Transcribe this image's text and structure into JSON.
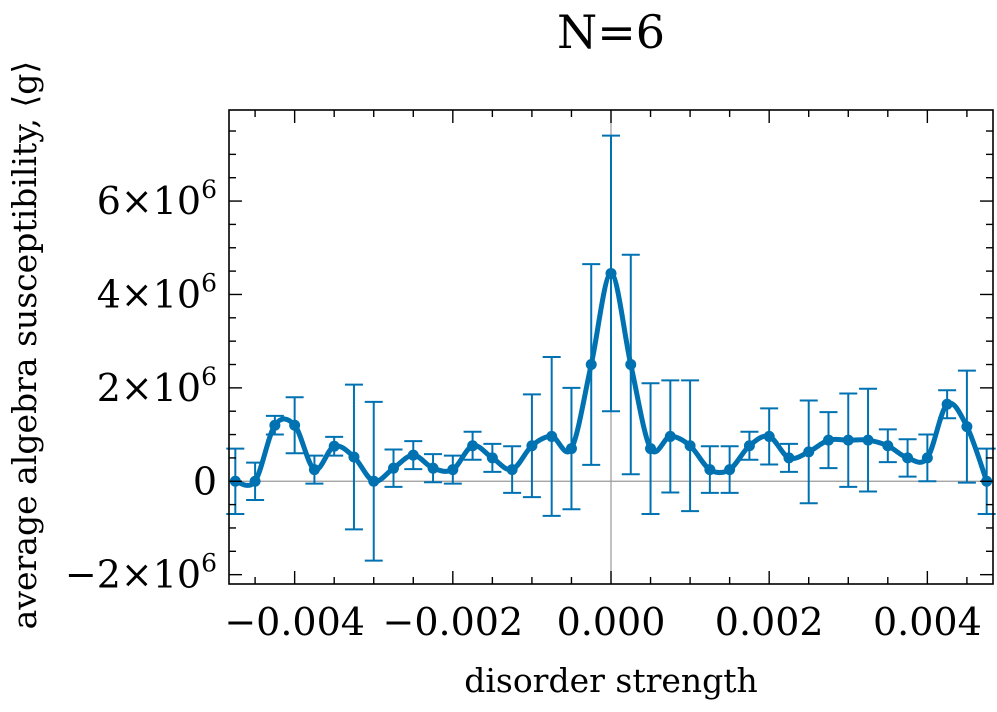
{
  "chart_data": {
    "type": "line",
    "title": "N=6",
    "xlabel": "disorder strength",
    "ylabel": "average algebra susceptibility, ⟨g⟩",
    "xlim": [
      -0.00483,
      0.00483
    ],
    "ylim": [
      -2200000,
      7950000
    ],
    "xticks": [
      -0.004,
      -0.002,
      0.0,
      0.002,
      0.004
    ],
    "xtick_labels": [
      "−0.004",
      "−0.002",
      "0.000",
      "0.002",
      "0.004"
    ],
    "yticks": [
      -2000000,
      0,
      2000000,
      4000000,
      6000000
    ],
    "ytick_labels": [
      {
        "base": "−2×10",
        "exp": "6"
      },
      {
        "base": "0",
        "exp": ""
      },
      {
        "base": "2×10",
        "exp": "6"
      },
      {
        "base": "4×10",
        "exp": "6"
      },
      {
        "base": "6×10",
        "exp": "6"
      }
    ],
    "reference_lines": {
      "x": 0.0,
      "y": 0
    },
    "series_color": "#0072b2",
    "series": [
      {
        "name": "N=6",
        "x": [
          -0.00475,
          -0.0045,
          -0.00425,
          -0.004,
          -0.00375,
          -0.0035,
          -0.00325,
          -0.003,
          -0.00275,
          -0.0025,
          -0.00225,
          -0.002,
          -0.00175,
          -0.0015,
          -0.00125,
          -0.001,
          -0.00075,
          -0.0005,
          -0.00025,
          0.0,
          0.00025,
          0.0005,
          0.00075,
          0.001,
          0.00125,
          0.0015,
          0.00175,
          0.002,
          0.00225,
          0.0025,
          0.00275,
          0.003,
          0.00325,
          0.0035,
          0.00375,
          0.004,
          0.00425,
          0.0045,
          0.00475
        ],
        "y": [
          0,
          0,
          1200000,
          1200000,
          250000,
          750000,
          520000,
          0,
          280000,
          560000,
          280000,
          250000,
          760000,
          500000,
          250000,
          760000,
          960000,
          700000,
          2500000,
          4450000,
          2500000,
          700000,
          960000,
          760000,
          250000,
          250000,
          760000,
          960000,
          500000,
          630000,
          880000,
          880000,
          880000,
          760000,
          500000,
          500000,
          1650000,
          1170000,
          0
        ],
        "yerr": [
          700000,
          400000,
          200000,
          600000,
          300000,
          200000,
          1550000,
          1700000,
          400000,
          300000,
          300000,
          300000,
          300000,
          300000,
          500000,
          1100000,
          1700000,
          1300000,
          2150000,
          2950000,
          2350000,
          1400000,
          1200000,
          1400000,
          500000,
          500000,
          300000,
          600000,
          300000,
          1100000,
          600000,
          1000000,
          1100000,
          350000,
          400000,
          500000,
          300000,
          1200000,
          700000
        ]
      }
    ]
  }
}
